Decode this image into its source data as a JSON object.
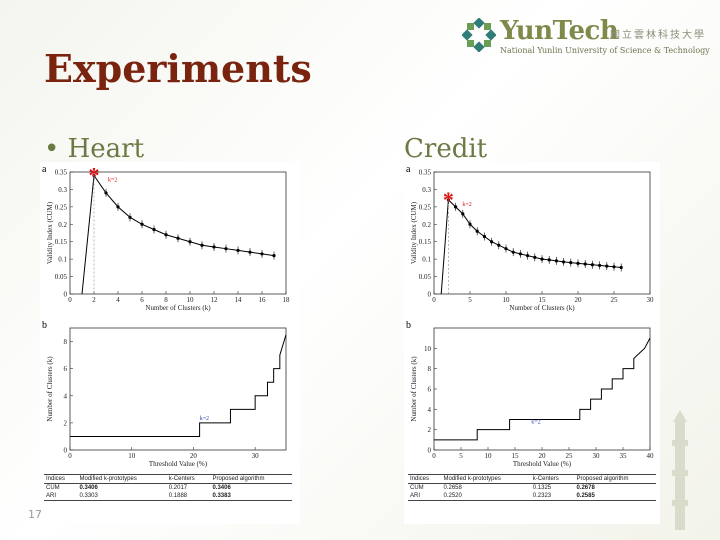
{
  "header": {
    "logo_name": "YunTech",
    "logo_chinese": "國立雲林科技大學",
    "logo_english": "National Yunlin University of Science & Technology"
  },
  "slide": {
    "title": "Experiments",
    "bullet_heart": "• Heart",
    "bullet_credit": "Credit",
    "page_number": "17"
  },
  "heart": {
    "panel_a_letter": "a",
    "panel_b_letter": "b",
    "k_annotation_a": "k=2",
    "k_annotation_b": "k=2",
    "table": {
      "headers": [
        "Indices",
        "Modified k-prototypes",
        "k-Centers",
        "Proposed algorithm"
      ],
      "rows": [
        {
          "index": "CUM",
          "values": [
            "0.3406",
            "0.2017",
            "0.3406"
          ]
        },
        {
          "index": "ARI",
          "values": [
            "0.3303",
            "0.1888",
            "0.3383"
          ]
        }
      ]
    }
  },
  "credit": {
    "panel_a_letter": "a",
    "panel_b_letter": "b",
    "k_annotation_a": "k=2",
    "k_annotation_b": "k=2",
    "table": {
      "headers": [
        "Indices",
        "Modified k-prototypes",
        "k-Centers",
        "Proposed algorithm"
      ],
      "rows": [
        {
          "index": "CUM",
          "values": [
            "0.2658",
            "0.1325",
            "0.2678"
          ]
        },
        {
          "index": "ARI",
          "values": [
            "0.2520",
            "0.2323",
            "0.2585"
          ]
        }
      ]
    }
  },
  "chart_data": [
    {
      "type": "line",
      "panel": "Heart a",
      "xlabel": "Number of Clusters (k)",
      "ylabel": "Validity Index (CUM)",
      "xlim": [
        0,
        18
      ],
      "ylim": [
        0,
        0.35
      ],
      "xticks": [
        0,
        2,
        4,
        6,
        8,
        10,
        12,
        14,
        16,
        18
      ],
      "yticks": [
        0,
        0.05,
        0.1,
        0.15,
        0.2,
        0.25,
        0.3,
        0.35
      ],
      "x": [
        1,
        2,
        3,
        4,
        5,
        6,
        7,
        8,
        9,
        10,
        11,
        12,
        13,
        14,
        15,
        16,
        17
      ],
      "y": [
        0,
        0.34,
        0.29,
        0.25,
        0.22,
        0.2,
        0.185,
        0.17,
        0.16,
        0.15,
        0.14,
        0.135,
        0.13,
        0.125,
        0.12,
        0.115,
        0.11
      ]
    },
    {
      "type": "line",
      "panel": "Heart b",
      "xlabel": "Threshold Value (%)",
      "ylabel": "Number of Clusters (k)",
      "xlim": [
        0,
        35
      ],
      "ylim": [
        0,
        9
      ],
      "xticks": [
        0,
        10,
        20,
        30
      ],
      "yticks": [
        0,
        2,
        4,
        6,
        8
      ],
      "x": [
        0,
        21,
        21,
        26,
        26,
        30,
        30,
        32,
        32,
        33,
        33,
        34,
        34,
        35
      ],
      "y": [
        1,
        1,
        2,
        2,
        3,
        3,
        4,
        4,
        5,
        5,
        6,
        6,
        7,
        8.5
      ]
    },
    {
      "type": "line",
      "panel": "Credit a",
      "xlabel": "Number of Clusters (k)",
      "ylabel": "Validity Index (CUM)",
      "xlim": [
        0,
        30
      ],
      "ylim": [
        0,
        0.35
      ],
      "xticks": [
        0,
        5,
        10,
        15,
        20,
        25,
        30
      ],
      "yticks": [
        0,
        0.05,
        0.1,
        0.15,
        0.2,
        0.25,
        0.3,
        0.35
      ],
      "x": [
        1,
        2,
        3,
        4,
        5,
        6,
        7,
        8,
        9,
        10,
        11,
        12,
        13,
        14,
        15,
        16,
        17,
        18,
        19,
        20,
        21,
        22,
        23,
        24,
        25,
        26
      ],
      "y": [
        0,
        0.27,
        0.25,
        0.23,
        0.2,
        0.18,
        0.165,
        0.15,
        0.14,
        0.13,
        0.12,
        0.115,
        0.11,
        0.105,
        0.1,
        0.098,
        0.095,
        0.092,
        0.09,
        0.088,
        0.086,
        0.084,
        0.082,
        0.08,
        0.078,
        0.076
      ]
    },
    {
      "type": "line",
      "panel": "Credit b",
      "xlabel": "Threshold Value (%)",
      "ylabel": "Number of Clusters (k)",
      "xlim": [
        0,
        40
      ],
      "ylim": [
        0,
        12
      ],
      "xticks": [
        0,
        5,
        10,
        15,
        20,
        25,
        30,
        35,
        40
      ],
      "yticks": [
        0,
        2,
        4,
        6,
        8,
        10
      ],
      "x": [
        0,
        8,
        8,
        14,
        14,
        27,
        27,
        29,
        29,
        31,
        31,
        33,
        33,
        35,
        35,
        37,
        37,
        39,
        40
      ],
      "y": [
        1,
        1,
        2,
        2,
        3,
        3,
        4,
        4,
        5,
        5,
        6,
        6,
        7,
        7,
        8,
        8,
        9,
        10,
        11
      ]
    }
  ]
}
